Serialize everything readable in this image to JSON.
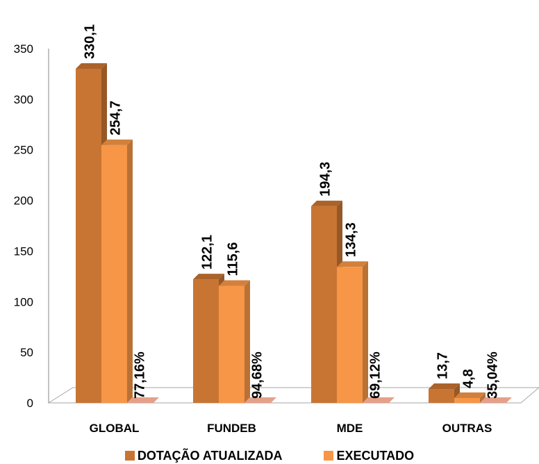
{
  "chart_data": {
    "type": "bar",
    "style": "3d-clustered-column",
    "categories": [
      "GLOBAL",
      "FUNDEB",
      "MDE",
      "OUTRAS"
    ],
    "series": [
      {
        "name": "DOTAÇÃO ATUALIZADA",
        "values": [
          330.1,
          122.1,
          194.3,
          13.7
        ],
        "labels": [
          "330,1",
          "122,1",
          "194,3",
          "13,7"
        ],
        "color": "#c87533"
      },
      {
        "name": "EXECUTADO",
        "values": [
          254.7,
          115.6,
          134.3,
          4.8
        ],
        "labels": [
          "254,7",
          "115,6",
          "134,3",
          "4,8"
        ],
        "color": "#f79646"
      }
    ],
    "percent_labels": [
      "77,16%",
      "94,68%",
      "69,12%",
      "35,04%"
    ],
    "percent_marker_color": "#e6a08a",
    "yticks": [
      "0",
      "50",
      "100",
      "150",
      "200",
      "250",
      "300",
      "350"
    ],
    "ylim": [
      0,
      350
    ],
    "grid": false,
    "legend_position": "bottom"
  }
}
